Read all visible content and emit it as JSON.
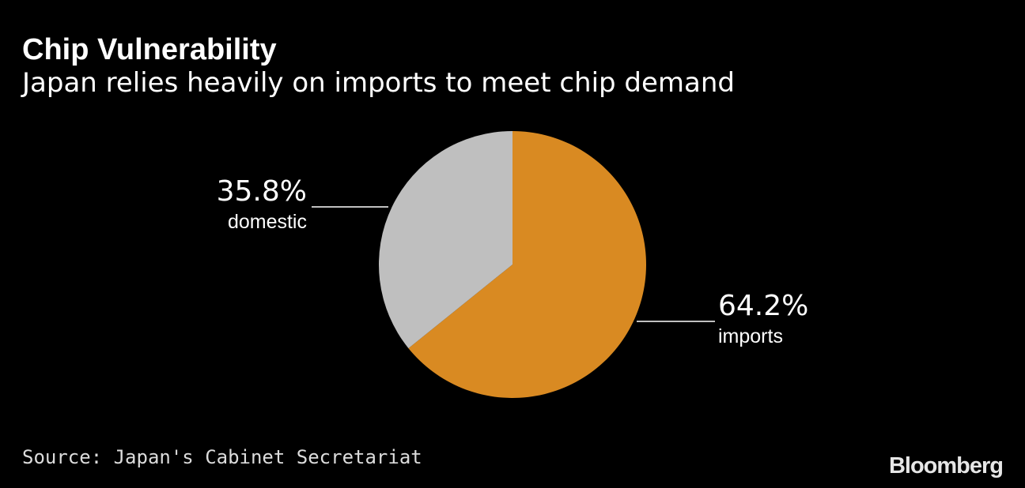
{
  "header": {
    "title": "Chip Vulnerability",
    "subtitle": "Japan relies heavily on imports to meet chip demand"
  },
  "chart_data": {
    "type": "pie",
    "title": "Chip Vulnerability",
    "subtitle": "Japan relies heavily on imports to meet chip demand",
    "slices": [
      {
        "label": "imports",
        "value": 64.2,
        "value_label": "64.2%",
        "color": "#d98a22"
      },
      {
        "label": "domestic",
        "value": 35.8,
        "value_label": "35.8%",
        "color": "#bfbfbf"
      }
    ],
    "start": "12 o'clock",
    "direction": "clockwise",
    "legend": "none (direct labels)"
  },
  "footer": {
    "source": "Source: Japan's Cabinet Secretariat",
    "brand": "Bloomberg"
  },
  "colors": {
    "background": "#000000",
    "text": "#ffffff",
    "imports": "#d98a22",
    "domestic": "#bfbfbf"
  }
}
